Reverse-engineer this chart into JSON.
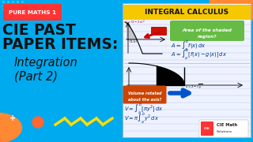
{
  "bg_color": "#00AAEE",
  "badge_color": "#FF3333",
  "badge_text": "PURE MATHS 1",
  "badge_text_color": "#FFFFFF",
  "title_line1": "CIE PAST",
  "title_line2": "PAPER ITEMS:",
  "subtitle_line1": "Integration",
  "subtitle_line2": "(Part 2)",
  "title_color": "#111111",
  "subtitle_color": "#111111",
  "panel_bg": "#EEF2FF",
  "panel_title": "INTEGRAL CALCULUS",
  "panel_title_bg": "#F5C800",
  "panel_title_color": "#111111",
  "green_label_line1": "Area of the shaded",
  "green_label_line2": "region?",
  "green_label_bg": "#66BB44",
  "blue_label_line1": "Volume rotated",
  "blue_label_line2": "about the axis?",
  "blue_label_bg": "#CC4400",
  "orange_blob_color": "#FF8833",
  "circle_color": "#FF6633",
  "yellow_color": "#FFDD00",
  "orange_arc_color": "#FF8833",
  "logo_text1": "CIE Math",
  "logo_text2": "Solutions",
  "logo_icon_color": "#FF3333",
  "formula_color": "#003388",
  "curve_label_color": "#AA0000"
}
